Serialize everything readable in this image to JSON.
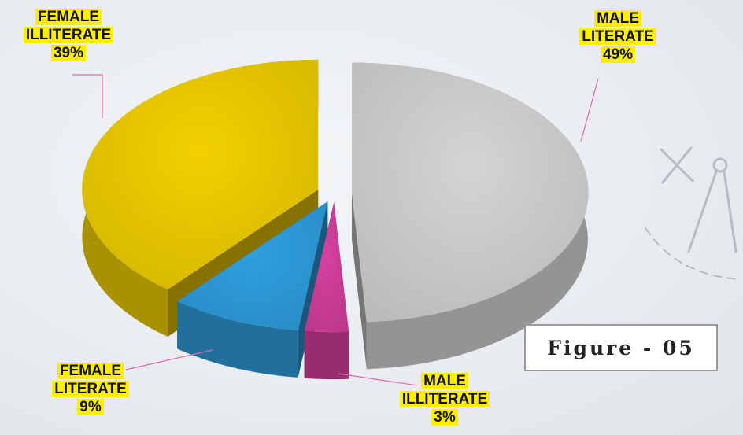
{
  "chart_data": {
    "type": "pie",
    "categories": [
      "MALE LITERATE",
      "MALE ILLITERATE",
      "FEMALE LITERATE",
      "FEMALE ILLITERATE"
    ],
    "values": [
      49,
      3,
      9,
      39
    ],
    "value_labels": [
      "49%",
      "3%",
      "9%",
      "39%"
    ],
    "colors": [
      "#d4d4d4",
      "#d6409f",
      "#2f9fe0",
      "#f2d000"
    ],
    "caption": "Figure - 05"
  }
}
